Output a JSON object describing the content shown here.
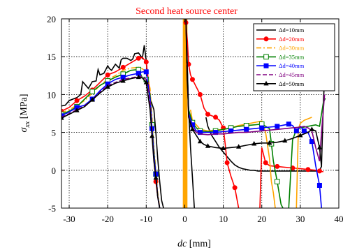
{
  "chart_data": {
    "type": "line",
    "title": "",
    "annotation": {
      "text": "Second heat source center",
      "color": "#ff0000"
    },
    "xlabel": {
      "italic": "dc",
      "rest": " [mm]"
    },
    "ylabel": {
      "main": "σ",
      "sub": "xx",
      "rest": " [MPa]"
    },
    "xlim": [
      -32,
      40
    ],
    "ylim": [
      -5,
      20
    ],
    "xticks": [
      -30,
      -20,
      -10,
      0,
      10,
      20,
      30,
      40
    ],
    "yticks": [
      -5,
      0,
      5,
      10,
      15,
      20
    ],
    "xtick_labels": [
      "-30",
      "-20",
      "-10",
      "0",
      "10",
      "20",
      "30",
      "40"
    ],
    "ytick_labels": [
      "-5",
      "0",
      "5",
      "10",
      "15",
      "20"
    ],
    "grid": true,
    "grid_style": "dotted",
    "legend_position": "top-right",
    "heat_source_band": {
      "x": [
        -0.5,
        0.7
      ],
      "color": "#ffa500"
    },
    "series": [
      {
        "name": "Δd=10mm",
        "color": "#000000",
        "style": "solid",
        "marker": "none",
        "x": [
          -32,
          -31,
          -30,
          -29,
          -28,
          -27,
          -26.5,
          -25,
          -24,
          -23,
          -22.5,
          -22,
          -21,
          -20,
          -19.5,
          -19,
          -18,
          -17,
          -16.5,
          -16,
          -15,
          -14,
          -13.5,
          -13,
          -12,
          -11,
          -10.5,
          -10,
          -9.5,
          -9,
          -8,
          -7.5,
          -7,
          -6.5,
          -6,
          -5.5
        ],
        "y": [
          8.5,
          8.6,
          9.2,
          9.4,
          9.6,
          10.0,
          11.7,
          10.8,
          11.7,
          11.8,
          13.3,
          12.6,
          12.8,
          13.8,
          13.4,
          13.2,
          14.0,
          13.5,
          14.6,
          14.8,
          14.8,
          14.5,
          14.7,
          15.4,
          15.5,
          14.8,
          16.5,
          14.5,
          11.0,
          9.5,
          8.0,
          5.0,
          1.5,
          -1.5,
          -4.0,
          -5.0
        ]
      },
      {
        "name": "Δd=20mm",
        "color": "#ff0000",
        "style": "solid",
        "marker": "circle",
        "x": [
          -32,
          -30,
          -28,
          -26,
          -24,
          -22,
          -20,
          -18,
          -16,
          -14,
          -12,
          -11,
          -10,
          -9,
          -8.5,
          -8,
          -7.5,
          -7,
          -6.5
        ],
        "y": [
          7.8,
          8.3,
          9.2,
          9.8,
          10.6,
          11.6,
          12.6,
          13.0,
          13.6,
          14.2,
          14.8,
          14.9,
          14.3,
          10.0,
          5.5,
          1.5,
          -1.5,
          -3.5,
          -5.0
        ]
      },
      {
        "name": "Δd=30mm",
        "color": "#ffa500",
        "style": "dashdot",
        "marker": "none",
        "x": [
          -32,
          -30,
          -28,
          -26,
          -24,
          -22,
          -20,
          -18,
          -16,
          -14,
          -12,
          -11,
          -10,
          -9,
          -8.5,
          -8,
          -7.5,
          -7,
          -6.5
        ],
        "y": [
          7.6,
          8.0,
          8.6,
          9.2,
          10.2,
          11.2,
          12.0,
          12.5,
          13.2,
          13.5,
          13.6,
          13.4,
          13.0,
          10.8,
          7.0,
          3.0,
          0.0,
          -3.0,
          -5.0
        ]
      },
      {
        "name": "Δd=35mm",
        "color": "#008000",
        "style": "solid",
        "marker": "square-open",
        "x": [
          -32,
          -30,
          -28,
          -26,
          -24,
          -22,
          -20,
          -18,
          -16,
          -14,
          -12,
          -11,
          -10,
          -9,
          -8.5,
          -8,
          -7.5,
          -7,
          -6.5
        ],
        "y": [
          7.4,
          7.8,
          8.4,
          9.4,
          10.4,
          11.2,
          11.8,
          12.3,
          12.7,
          13.2,
          13.3,
          12.2,
          12.0,
          10.0,
          6.0,
          2.5,
          -0.5,
          -3.5,
          -5.0
        ]
      },
      {
        "name": "Δd=40mm",
        "color": "#0000ff",
        "style": "solid",
        "marker": "square",
        "x": [
          -32,
          -30,
          -28,
          -26,
          -24,
          -22,
          -20,
          -18,
          -16,
          -14,
          -12,
          -11,
          -10,
          -9,
          -8.5,
          -8,
          -7.5,
          -7,
          -6.5
        ],
        "y": [
          7.2,
          7.7,
          8.3,
          8.6,
          9.4,
          10.5,
          11.4,
          12.0,
          12.3,
          12.6,
          12.8,
          13.0,
          13.0,
          9.5,
          5.5,
          2.0,
          -0.5,
          -3.5,
          -5.0
        ]
      },
      {
        "name": "Δd=45mm",
        "color": "#800080",
        "style": "dashed",
        "marker": "none",
        "x": [
          -32,
          -30,
          -28,
          -26,
          -24,
          -22,
          -20,
          -18,
          -16,
          -14,
          -12,
          -11,
          -10,
          -9,
          -8.5,
          -8,
          -7.5,
          -7,
          -6.5
        ],
        "y": [
          7.0,
          7.5,
          8.0,
          8.5,
          9.3,
          10.3,
          11.2,
          11.6,
          12.0,
          12.2,
          12.4,
          12.4,
          12.0,
          9.0,
          5.0,
          1.5,
          -1.0,
          -3.5,
          -5.0
        ]
      },
      {
        "name": "Δd=50mm",
        "color": "#000000",
        "style": "solid",
        "marker": "triangle",
        "x": [
          -32,
          -30,
          -28,
          -26,
          -24,
          -22,
          -20,
          -18,
          -16,
          -14,
          -12,
          -11,
          -10,
          -9,
          -8.5,
          -8,
          -7.5,
          -7,
          -6.5
        ],
        "y": [
          6.9,
          7.4,
          7.9,
          8.4,
          9.3,
          10.2,
          11.0,
          11.5,
          11.8,
          12.1,
          12.3,
          12.2,
          11.6,
          8.0,
          4.5,
          1.2,
          -1.0,
          -3.5,
          -5.0
        ]
      }
    ],
    "series_right": [
      {
        "color": "#000000",
        "marker": "none",
        "x": [
          0.3,
          0.6,
          1.0,
          1.5,
          2.0,
          2.5,
          3.0,
          3.5,
          4.0,
          5.0,
          6.0,
          7.0,
          8.0,
          9.0,
          10.0,
          12.0,
          14.0,
          16.0,
          18.0,
          20.0,
          22.0,
          24.0,
          26.0,
          28.0,
          30.0,
          32.0,
          34.0,
          36.0
        ],
        "y": [
          20.0,
          12.0,
          8.0,
          3.0,
          -1.0,
          -5.0,
          null,
          null,
          null,
          null,
          null,
          null,
          null,
          null,
          null,
          null,
          null,
          null,
          null,
          null,
          null,
          null,
          null,
          null,
          null,
          null,
          null,
          null
        ]
      },
      {
        "color": "#000000",
        "marker": "none",
        "x": [
          5.5,
          6.0,
          7.0,
          8.0,
          9.0,
          10.0,
          11.0,
          12.0,
          13.0,
          14.0,
          15.0,
          16.0,
          17.0,
          18.0,
          19.0,
          20.0,
          21.0,
          22.0,
          24.0,
          26.0,
          28.0,
          30.0,
          32.0,
          34.0,
          35.0,
          35.5,
          36.0,
          36.5
        ],
        "y": [
          7.0,
          5.8,
          4.6,
          3.8,
          3.0,
          2.4,
          1.8,
          1.2,
          0.7,
          0.4,
          0.2,
          0.1,
          0.0,
          0.0,
          -0.1,
          -0.1,
          -0.1,
          -0.1,
          -0.1,
          -0.1,
          -0.1,
          -0.1,
          -0.1,
          -0.1,
          0.0,
          0.5,
          9.0,
          14.0
        ]
      },
      {
        "color": "#ff0000",
        "marker": "circle",
        "x": [
          0.3,
          0.7,
          1.0,
          1.5,
          2.0,
          3.0,
          4.0,
          5.0,
          6.0,
          7.0,
          8.0,
          9.0,
          10.0,
          10.5,
          11.0,
          12.0,
          13.0,
          14.0
        ],
        "y": [
          19.5,
          17.0,
          14.0,
          12.6,
          12.0,
          11.0,
          10.0,
          8.2,
          7.4,
          7.2,
          7.0,
          6.6,
          5.6,
          3.5,
          1.0,
          -0.8,
          -2.3,
          -5.0
        ]
      },
      {
        "color": "#ff0000",
        "marker": "circle",
        "x": [
          19.5,
          20.0,
          21.0,
          22.0,
          24.0,
          26.0,
          28.0,
          30.0,
          32.0,
          34.0,
          35.0,
          36.0
        ],
        "y": [
          -5.0,
          3.0,
          1.0,
          0.6,
          0.5,
          0.4,
          0.3,
          0.2,
          0.1,
          0.0,
          -0.1,
          -0.2
        ]
      },
      {
        "color": "#ffa500",
        "marker": "none",
        "x": [
          1.5,
          2.0,
          3.0,
          4.0,
          6.0,
          8.0,
          10.0,
          12.0,
          14.0,
          16.0,
          18.0,
          20.0,
          21.0,
          22.0,
          22.5,
          23.0,
          23.5
        ],
        "y": [
          8.0,
          6.5,
          6.0,
          5.4,
          5.2,
          5.3,
          5.4,
          5.6,
          5.9,
          6.1,
          6.3,
          6.5,
          5.0,
          1.5,
          -1.5,
          -3.0,
          -5.0
        ]
      },
      {
        "color": "#ffa500",
        "marker": "none",
        "x": [
          29.0,
          29.5,
          30.0,
          31.0,
          32.0,
          33.0
        ],
        "y": [
          -5.0,
          5.5,
          6.2,
          6.6,
          6.8,
          7.0
        ]
      },
      {
        "color": "#008000",
        "marker": "square-open",
        "x": [
          0.3,
          1.0,
          2.0,
          3.0,
          4.0,
          6.0,
          8.0,
          10.0,
          12.0,
          14.0,
          16.0,
          18.0,
          20.0,
          22.0,
          22.5,
          23.0,
          24.0,
          25.0,
          25.5
        ],
        "y": [
          20.0,
          8.0,
          6.3,
          5.6,
          5.2,
          5.1,
          5.2,
          5.4,
          5.6,
          5.8,
          5.9,
          6.0,
          6.1,
          5.5,
          3.5,
          1.2,
          -1.5,
          -4.5,
          -5.0
        ]
      },
      {
        "color": "#008000",
        "marker": "none",
        "x": [
          27.0,
          28.0,
          29.0,
          30.0,
          31.0,
          32.0,
          33.0,
          34.0,
          35.0,
          36.0,
          36.5
        ],
        "y": [
          -5.0,
          4.0,
          5.4,
          5.6,
          5.7,
          5.8,
          5.9,
          6.0,
          5.8,
          9.0,
          9.5
        ]
      },
      {
        "color": "#0000ff",
        "marker": "square",
        "x": [
          0.3,
          1.0,
          2.0,
          3.0,
          4.0,
          6.0,
          8.0,
          10.0,
          12.0,
          14.0,
          16.0,
          18.0,
          20.0,
          22.0,
          24.0,
          26.0,
          27.0,
          28.0,
          29.0,
          30.0,
          31.0,
          32.0,
          33.0,
          34.0,
          35.0,
          35.5
        ],
        "y": [
          20.0,
          7.5,
          6.0,
          5.2,
          5.0,
          5.0,
          5.0,
          5.1,
          5.2,
          5.3,
          5.4,
          5.5,
          5.6,
          5.7,
          5.8,
          6.0,
          6.1,
          5.9,
          5.2,
          5.8,
          5.2,
          5.0,
          3.8,
          0.6,
          -2.0,
          -5.0
        ]
      },
      {
        "color": "#800080",
        "marker": "none",
        "x": [
          0.3,
          1.0,
          2.0,
          3.0,
          4.0,
          6.0,
          8.0,
          10.0,
          12.0,
          14.0,
          16.0,
          18.0,
          20.0,
          22.0,
          24.0,
          26.0,
          28.0,
          30.0,
          31.0,
          32.0,
          33.0,
          34.0,
          35.0,
          35.5,
          36.0,
          36.3
        ],
        "y": [
          20.0,
          7.0,
          5.6,
          5.0,
          4.8,
          4.7,
          4.8,
          4.8,
          4.9,
          5.0,
          5.0,
          5.1,
          5.2,
          5.3,
          5.4,
          5.5,
          5.6,
          5.7,
          5.8,
          5.6,
          5.2,
          3.0,
          1.2,
          5.0,
          8.0,
          10.0
        ]
      },
      {
        "color": "#000000",
        "marker": "triangle",
        "x": [
          0.3,
          1.0,
          2.0,
          3.0,
          4.0,
          5.0,
          6.0,
          8.0,
          10.0,
          12.0,
          14.0,
          16.0,
          18.0,
          20.0,
          22.0,
          24.0,
          26.0,
          28.0,
          30.0,
          32.0,
          33.0,
          34.0,
          35.0,
          35.5
        ],
        "y": [
          20.0,
          7.0,
          5.4,
          4.6,
          3.8,
          3.4,
          3.2,
          3.0,
          2.9,
          3.0,
          3.1,
          3.3,
          3.5,
          3.6,
          3.6,
          3.7,
          3.9,
          4.2,
          4.6,
          5.0,
          5.4,
          5.2,
          3.0,
          0.5
        ]
      }
    ]
  }
}
